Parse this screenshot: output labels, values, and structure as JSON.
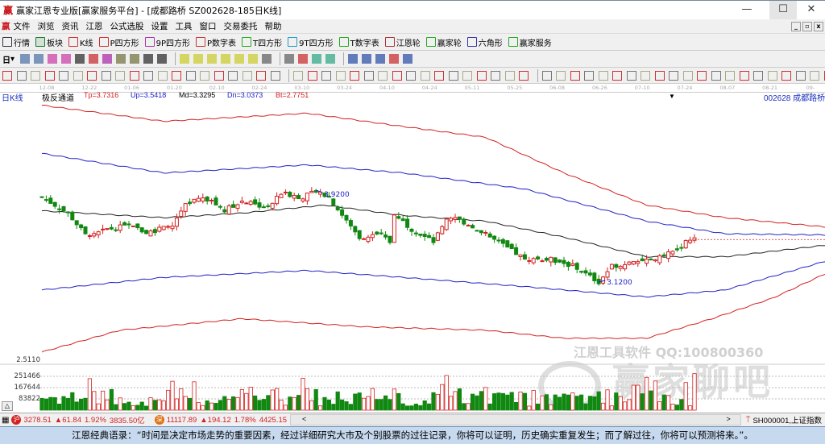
{
  "window": {
    "title": "赢家江恩专业版[赢家服务平台] - [成都路桥  SZ002628-185日K线]",
    "logo": "赢",
    "minimize": "—",
    "maximize": "☐",
    "close": "✕"
  },
  "menu": [
    "文件",
    "浏览",
    "资讯",
    "江恩",
    "公式选股",
    "设置",
    "工具",
    "窗口",
    "交易委托",
    "帮助"
  ],
  "toolbar1": [
    {
      "label": "行情",
      "icon": "grid-icon",
      "color": "#334"
    },
    {
      "label": "板块",
      "icon": "blocks-icon",
      "color": "#1a7a2a"
    },
    {
      "label": "K线",
      "icon": "kline-icon",
      "color": "#c33"
    },
    {
      "label": "P四方形",
      "icon": "p4-icon",
      "color": "#c33"
    },
    {
      "label": "9P四方形",
      "icon": "9p-icon",
      "color": "#a3a"
    },
    {
      "label": "P数字表",
      "icon": "pn-icon",
      "color": "#c33"
    },
    {
      "label": "T四方形",
      "icon": "t4-icon",
      "color": "#2a2"
    },
    {
      "label": "9T四方形",
      "icon": "9t-icon",
      "color": "#29c"
    },
    {
      "label": "T数字表",
      "icon": "tn-icon",
      "color": "#2a2"
    },
    {
      "label": "江恩轮",
      "icon": "gann-wheel-icon",
      "color": "#a33"
    },
    {
      "label": "赢家轮",
      "icon": "winner-wheel-icon",
      "color": "#2a2"
    },
    {
      "label": "六角形",
      "icon": "hexagon-icon",
      "color": "#33a"
    },
    {
      "label": "赢家服务",
      "icon": "dollar-icon",
      "color": "#2a2"
    }
  ],
  "period_selector": "日",
  "date_axis": [
    "12-08",
    "12-22",
    "01-06",
    "01-20",
    "02-10",
    "02-24",
    "03-10",
    "03-24",
    "04-10",
    "04-24",
    "05-11",
    "05-25",
    "06-08",
    "06-26",
    "07-10",
    "07-24",
    "08-07",
    "08-21",
    "09-04"
  ],
  "chart_header": {
    "period": "日K线",
    "indicator": "极反通道",
    "tp": "Tp=3.7316",
    "up": "Up=3.5418",
    "md": "Md=3.3295",
    "dn": "Dn=3.0373",
    "bt": "Bt=2.7751",
    "stock": "002628  成都路桥"
  },
  "annotations": {
    "high": "3.9200",
    "low": "3.1200"
  },
  "y_labels": {
    "price_low": "2.5110",
    "vol": [
      "251466",
      "167644",
      "83822"
    ]
  },
  "chart_data": {
    "type": "candlestick",
    "x_unit": "bar index",
    "close_path": [
      [
        0,
        3.86
      ],
      [
        6,
        3.72
      ],
      [
        10,
        3.53
      ],
      [
        15,
        3.58
      ],
      [
        20,
        3.61
      ],
      [
        24,
        3.55
      ],
      [
        30,
        3.61
      ],
      [
        33,
        3.79
      ],
      [
        37,
        3.86
      ],
      [
        42,
        3.75
      ],
      [
        46,
        3.82
      ],
      [
        52,
        3.77
      ],
      [
        55,
        3.89
      ],
      [
        60,
        3.86
      ],
      [
        63,
        3.92
      ],
      [
        66,
        3.86
      ],
      [
        70,
        3.65
      ],
      [
        73,
        3.51
      ],
      [
        78,
        3.53
      ],
      [
        80,
        3.47
      ],
      [
        81,
        3.72
      ],
      [
        85,
        3.58
      ],
      [
        90,
        3.47
      ],
      [
        93,
        3.65
      ],
      [
        95,
        3.68
      ],
      [
        100,
        3.58
      ],
      [
        106,
        3.44
      ],
      [
        111,
        3.32
      ],
      [
        117,
        3.32
      ],
      [
        122,
        3.26
      ],
      [
        128,
        3.12
      ],
      [
        131,
        3.26
      ],
      [
        137,
        3.3
      ],
      [
        142,
        3.33
      ],
      [
        146,
        3.4
      ],
      [
        148,
        3.47
      ],
      [
        150,
        3.49
      ]
    ],
    "bands": {
      "Tp": {
        "color": "#d42020",
        "points": [
          [
            0,
            4.66
          ],
          [
            28,
            4.52
          ],
          [
            61,
            4.59
          ],
          [
            80,
            4.49
          ],
          [
            102,
            4.38
          ],
          [
            120,
            4.07
          ],
          [
            139,
            3.79
          ],
          [
            157,
            3.68
          ],
          [
            180,
            3.6
          ]
        ]
      },
      "Up": {
        "color": "#2020c8",
        "points": [
          [
            0,
            4.24
          ],
          [
            28,
            4.07
          ],
          [
            61,
            4.14
          ],
          [
            83,
            4.07
          ],
          [
            111,
            3.93
          ],
          [
            139,
            3.65
          ],
          [
            157,
            3.54
          ],
          [
            180,
            3.53
          ]
        ]
      },
      "Md": {
        "color": "#222222",
        "points": [
          [
            0,
            3.74
          ],
          [
            28,
            3.68
          ],
          [
            46,
            3.72
          ],
          [
            65,
            3.79
          ],
          [
            83,
            3.7
          ],
          [
            102,
            3.65
          ],
          [
            120,
            3.51
          ],
          [
            139,
            3.34
          ],
          [
            157,
            3.34
          ],
          [
            180,
            3.44
          ]
        ]
      },
      "Dn": {
        "color": "#2020c8",
        "points": [
          [
            0,
            3.05
          ],
          [
            28,
            3.16
          ],
          [
            61,
            3.22
          ],
          [
            83,
            3.16
          ],
          [
            111,
            3.08
          ],
          [
            139,
            2.99
          ],
          [
            157,
            3.05
          ],
          [
            180,
            3.3
          ]
        ]
      },
      "Bt": {
        "color": "#d42020",
        "points": [
          [
            0,
            2.51
          ],
          [
            18,
            2.7
          ],
          [
            46,
            2.8
          ],
          [
            74,
            2.73
          ],
          [
            102,
            2.7
          ],
          [
            120,
            2.63
          ],
          [
            139,
            2.63
          ],
          [
            154,
            2.8
          ],
          [
            168,
            2.98
          ],
          [
            180,
            3.19
          ]
        ]
      }
    },
    "last_close": 3.49,
    "up_color": "#d42020",
    "down_color": "#118811"
  },
  "status": {
    "sh_index": "3278.51",
    "sh_change": "▲61.84",
    "sh_pct": "1.92%",
    "sh_amount": "3835.50亿",
    "sz_index": "11117.89",
    "sz_change": "▲194.12",
    "sz_pct": "1.78%",
    "sz_amount": "4425.15",
    "sh_icon": "沪",
    "sz_icon": "深",
    "scroll_left": "<",
    "scroll_right": ">",
    "ticker": "SH000001,上证指数"
  },
  "watermark": {
    "line1": "江恩工具软件  QQ:100800360",
    "line2": "赢家聊吧"
  },
  "quote": "江恩经典语录：“时间是决定市场走势的重要因素，经过详细研究大市及个别股票的过往记录，你将可以证明，历史确实重复发生；而了解过往，你将可以预测将来。”。"
}
